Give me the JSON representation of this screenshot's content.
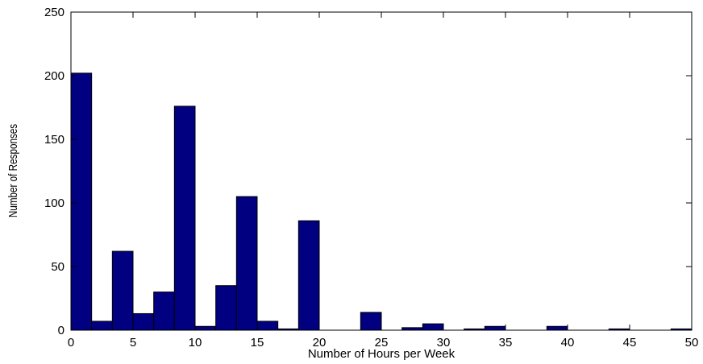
{
  "chart_data": {
    "type": "bar",
    "subtype": "histogram",
    "xlabel": "Number of Hours per Week",
    "ylabel": "Number of Responses",
    "xlim": [
      0,
      50
    ],
    "ylim": [
      0,
      250
    ],
    "xticks": [
      0,
      5,
      10,
      15,
      20,
      25,
      30,
      35,
      40,
      45,
      50
    ],
    "yticks": [
      0,
      50,
      100,
      150,
      200,
      250
    ],
    "grid": false,
    "bin_width": 1.6667,
    "bins": [
      {
        "x_start": 0.0,
        "count": 202
      },
      {
        "x_start": 1.6667,
        "count": 7
      },
      {
        "x_start": 3.3333,
        "count": 62
      },
      {
        "x_start": 5.0,
        "count": 13
      },
      {
        "x_start": 6.6667,
        "count": 30
      },
      {
        "x_start": 8.3333,
        "count": 176
      },
      {
        "x_start": 10.0,
        "count": 3
      },
      {
        "x_start": 11.6667,
        "count": 35
      },
      {
        "x_start": 13.3333,
        "count": 105
      },
      {
        "x_start": 15.0,
        "count": 7
      },
      {
        "x_start": 16.6667,
        "count": 1
      },
      {
        "x_start": 18.3333,
        "count": 86
      },
      {
        "x_start": 20.0,
        "count": 0
      },
      {
        "x_start": 21.6667,
        "count": 0
      },
      {
        "x_start": 23.3333,
        "count": 14
      },
      {
        "x_start": 25.0,
        "count": 0
      },
      {
        "x_start": 26.6667,
        "count": 2
      },
      {
        "x_start": 28.3333,
        "count": 5
      },
      {
        "x_start": 30.0,
        "count": 0
      },
      {
        "x_start": 31.6667,
        "count": 1
      },
      {
        "x_start": 33.3333,
        "count": 3
      },
      {
        "x_start": 35.0,
        "count": 0
      },
      {
        "x_start": 36.6667,
        "count": 0
      },
      {
        "x_start": 38.3333,
        "count": 3
      },
      {
        "x_start": 40.0,
        "count": 0
      },
      {
        "x_start": 41.6667,
        "count": 0
      },
      {
        "x_start": 43.3333,
        "count": 1
      },
      {
        "x_start": 45.0,
        "count": 0
      },
      {
        "x_start": 46.6667,
        "count": 0
      },
      {
        "x_start": 48.3333,
        "count": 1
      }
    ],
    "colors": {
      "bar_fill": "#000080",
      "bar_edge": "#000000",
      "axes": "#000000",
      "background": "#ffffff"
    }
  }
}
